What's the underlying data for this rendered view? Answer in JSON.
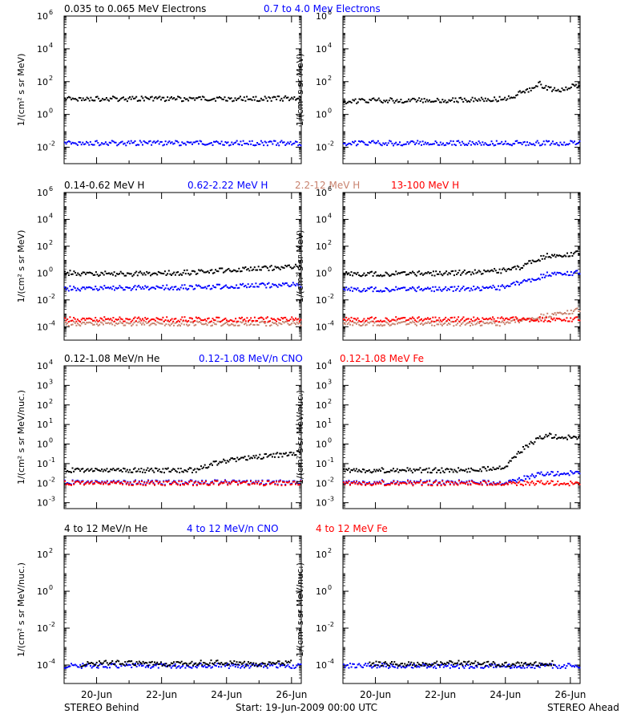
{
  "footer": {
    "left": "STEREO Behind",
    "center": "Start: 19-Jun-2009 00:00 UTC",
    "right": "STEREO Ahead"
  },
  "x_axis": {
    "ticks": [
      1,
      3,
      5,
      7
    ],
    "tick_labels": [
      "20-Jun",
      "22-Jun",
      "24-Jun",
      "26-Jun"
    ],
    "range_days": [
      0,
      7.3
    ]
  },
  "colors": {
    "black": "#000000",
    "blue": "#0000ff",
    "tan": "#c8826e",
    "red": "#ff0000"
  },
  "chart_data": [
    {
      "type": "scatter",
      "row": 0,
      "ylabel": "1/(cm² s sr MeV)",
      "log_y": true,
      "ylim": [
        0.001,
        1000000
      ],
      "y_ticks": [
        0.01,
        1,
        100,
        10000,
        1000000
      ],
      "y_tick_labels": [
        [
          "10",
          "-2"
        ],
        [
          "10",
          "0"
        ],
        [
          "10",
          "2"
        ],
        [
          "10",
          "4"
        ],
        [
          "10",
          "6"
        ]
      ],
      "legend": [
        {
          "text": "0.035 to 0.065 MeV Electrons",
          "color": "#000000"
        },
        {
          "text": "0.7 to 4.0 Mev Electrons",
          "color": "#0000ff"
        }
      ],
      "panels": [
        {
          "spacecraft": "STEREO Behind",
          "series": [
            {
              "color": "#000000",
              "points": [
                [
                  0,
                  10
                ],
                [
                  1,
                  10
                ],
                [
                  2,
                  10
                ],
                [
                  3,
                  10
                ],
                [
                  4,
                  10
                ],
                [
                  5,
                  10
                ],
                [
                  6,
                  10
                ],
                [
                  7.3,
                  11
                ]
              ]
            },
            {
              "color": "#0000ff",
              "points": [
                [
                  0,
                  0.02
                ],
                [
                  2,
                  0.02
                ],
                [
                  4,
                  0.02
                ],
                [
                  6,
                  0.02
                ],
                [
                  7.3,
                  0.02
                ]
              ]
            }
          ]
        },
        {
          "spacecraft": "STEREO Ahead",
          "series": [
            {
              "color": "#000000",
              "points": [
                [
                  0,
                  7
                ],
                [
                  1,
                  8
                ],
                [
                  2,
                  8
                ],
                [
                  3,
                  8
                ],
                [
                  4,
                  9
                ],
                [
                  5,
                  10
                ],
                [
                  5.5,
                  25
                ],
                [
                  5.8,
                  45
                ],
                [
                  6,
                  90
                ],
                [
                  6.3,
                  40
                ],
                [
                  6.6,
                  35
                ],
                [
                  7,
                  55
                ],
                [
                  7.3,
                  60
                ]
              ]
            },
            {
              "color": "#0000ff",
              "points": [
                [
                  0,
                  0.02
                ],
                [
                  2,
                  0.02
                ],
                [
                  4,
                  0.02
                ],
                [
                  6,
                  0.02
                ],
                [
                  7.3,
                  0.02
                ]
              ]
            }
          ]
        }
      ]
    },
    {
      "type": "scatter",
      "row": 1,
      "ylabel": "1/(cm² s sr MeV)",
      "log_y": true,
      "ylim": [
        1e-05,
        1000000
      ],
      "y_ticks": [
        0.0001,
        0.01,
        1,
        100,
        10000,
        1000000
      ],
      "y_tick_labels": [
        [
          "10",
          "-4"
        ],
        [
          "10",
          "-2"
        ],
        [
          "10",
          "0"
        ],
        [
          "10",
          "2"
        ],
        [
          "10",
          "4"
        ],
        [
          "10",
          "6"
        ]
      ],
      "legend": [
        {
          "text": "0.14-0.62 MeV H",
          "color": "#000000"
        },
        {
          "text": "0.62-2.22 MeV H",
          "color": "#0000ff"
        },
        {
          "text": "2.2-12 MeV H",
          "color": "#c8826e"
        },
        {
          "text": "13-100 MeV H",
          "color": "#ff0000"
        }
      ],
      "panels": [
        {
          "spacecraft": "STEREO Behind",
          "series": [
            {
              "color": "#000000",
              "points": [
                [
                  0,
                  1.2
                ],
                [
                  1,
                  1
                ],
                [
                  2,
                  1
                ],
                [
                  3,
                  1.1
                ],
                [
                  4,
                  1.3
                ],
                [
                  5,
                  2
                ],
                [
                  6,
                  2.5
                ],
                [
                  7.3,
                  3.5
                ]
              ]
            },
            {
              "color": "#0000ff",
              "points": [
                [
                  0,
                  0.08
                ],
                [
                  2,
                  0.09
                ],
                [
                  4,
                  0.1
                ],
                [
                  5,
                  0.12
                ],
                [
                  6,
                  0.14
                ],
                [
                  7.3,
                  0.15
                ]
              ]
            },
            {
              "color": "#c8826e",
              "points": [
                [
                  0,
                  0.0002
                ],
                [
                  3,
                  0.0002
                ],
                [
                  7.3,
                  0.0002
                ]
              ]
            },
            {
              "color": "#ff0000",
              "points": [
                [
                  0,
                  0.0004
                ],
                [
                  2,
                  0.0004
                ],
                [
                  4,
                  0.0004
                ],
                [
                  6,
                  0.0004
                ],
                [
                  7.3,
                  0.0004
                ]
              ]
            }
          ]
        },
        {
          "spacecraft": "STEREO Ahead",
          "series": [
            {
              "color": "#000000",
              "points": [
                [
                  0,
                  1
                ],
                [
                  2,
                  1
                ],
                [
                  3,
                  1.1
                ],
                [
                  4,
                  1.3
                ],
                [
                  5,
                  1.8
                ],
                [
                  5.5,
                  3
                ],
                [
                  5.7,
                  8
                ],
                [
                  6,
                  12
                ],
                [
                  6.3,
                  25
                ],
                [
                  6.6,
                  20
                ],
                [
                  7,
                  30
                ],
                [
                  7.3,
                  35
                ]
              ]
            },
            {
              "color": "#0000ff",
              "points": [
                [
                  0,
                  0.07
                ],
                [
                  2,
                  0.07
                ],
                [
                  4,
                  0.08
                ],
                [
                  5,
                  0.1
                ],
                [
                  5.6,
                  0.3
                ],
                [
                  6,
                  0.5
                ],
                [
                  6.3,
                  1
                ],
                [
                  7,
                  1.1
                ],
                [
                  7.3,
                  1.2
                ]
              ]
            },
            {
              "color": "#c8826e",
              "points": [
                [
                  0,
                  0.0002
                ],
                [
                  5,
                  0.0002
                ],
                [
                  6,
                  0.0006
                ],
                [
                  6.5,
                  0.001
                ],
                [
                  7,
                  0.0015
                ],
                [
                  7.3,
                  0.002
                ]
              ]
            },
            {
              "color": "#ff0000",
              "points": [
                [
                  0,
                  0.0004
                ],
                [
                  2,
                  0.0004
                ],
                [
                  4,
                  0.0004
                ],
                [
                  6,
                  0.0004
                ],
                [
                  7.3,
                  0.0004
                ]
              ]
            }
          ]
        }
      ]
    },
    {
      "type": "scatter",
      "row": 2,
      "ylabel": "1/(cm² s sr MeV/nuc.)",
      "log_y": true,
      "ylim": [
        0.0005,
        10000
      ],
      "y_ticks": [
        0.001,
        0.01,
        0.1,
        1,
        10,
        100,
        1000,
        10000
      ],
      "y_tick_labels": [
        [
          "10",
          "-3"
        ],
        [
          "10",
          "-2"
        ],
        [
          "10",
          "-1"
        ],
        [
          "10",
          "0"
        ],
        [
          "10",
          "1"
        ],
        [
          "10",
          "2"
        ],
        [
          "10",
          "3"
        ],
        [
          "10",
          "4"
        ]
      ],
      "legend": [
        {
          "text": "0.12-1.08 MeV/n He",
          "color": "#000000"
        },
        {
          "text": "0.12-1.08 MeV/n CNO",
          "color": "#0000ff"
        },
        {
          "text": "0.12-1.08 MeV Fe",
          "color": "#ff0000"
        }
      ],
      "panels": [
        {
          "spacecraft": "STEREO Behind",
          "series": [
            {
              "color": "#000000",
              "points": [
                [
                  0,
                  0.05
                ],
                [
                  2,
                  0.05
                ],
                [
                  4,
                  0.05
                ],
                [
                  4.5,
                  0.1
                ],
                [
                  5,
                  0.15
                ],
                [
                  5.5,
                  0.2
                ],
                [
                  6,
                  0.25
                ],
                [
                  6.5,
                  0.3
                ],
                [
                  7,
                  0.35
                ],
                [
                  7.3,
                  0.4
                ]
              ]
            },
            {
              "color": "#0000ff",
              "points": [
                [
                  0,
                  0.012
                ],
                [
                  3,
                  0.012
                ],
                [
                  7.3,
                  0.012
                ]
              ]
            },
            {
              "color": "#ff0000",
              "points": [
                [
                  0,
                  0.011
                ],
                [
                  3,
                  0.011
                ],
                [
                  7.3,
                  0.011
                ]
              ]
            }
          ]
        },
        {
          "spacecraft": "STEREO Ahead",
          "series": [
            {
              "color": "#000000",
              "points": [
                [
                  0,
                  0.05
                ],
                [
                  2,
                  0.05
                ],
                [
                  4,
                  0.05
                ],
                [
                  5,
                  0.08
                ],
                [
                  5.3,
                  0.3
                ],
                [
                  5.6,
                  0.8
                ],
                [
                  6,
                  2
                ],
                [
                  6.3,
                  3
                ],
                [
                  6.6,
                  2.5
                ],
                [
                  7,
                  2.5
                ],
                [
                  7.3,
                  2.2
                ]
              ]
            },
            {
              "color": "#0000ff",
              "points": [
                [
                  0,
                  0.012
                ],
                [
                  3,
                  0.012
                ],
                [
                  5,
                  0.012
                ],
                [
                  6,
                  0.03
                ],
                [
                  7.3,
                  0.04
                ]
              ]
            },
            {
              "color": "#ff0000",
              "points": [
                [
                  0,
                  0.011
                ],
                [
                  3,
                  0.011
                ],
                [
                  7.3,
                  0.011
                ]
              ]
            }
          ]
        }
      ]
    },
    {
      "type": "scatter",
      "row": 3,
      "ylabel": "1/(cm² s sr MeV/nuc.)",
      "log_y": true,
      "ylim": [
        1e-05,
        1000
      ],
      "y_ticks": [
        0.0001,
        0.01,
        1,
        100
      ],
      "y_tick_labels": [
        [
          "10",
          "-4"
        ],
        [
          "10",
          "-2"
        ],
        [
          "10",
          "0"
        ],
        [
          "10",
          "2"
        ]
      ],
      "legend": [
        {
          "text": "4 to 12 MeV/n He",
          "color": "#000000"
        },
        {
          "text": "4 to 12 MeV/n CNO",
          "color": "#0000ff"
        },
        {
          "text": "4 to 12 MeV Fe",
          "color": "#ff0000"
        }
      ],
      "panels": [
        {
          "spacecraft": "STEREO Behind",
          "series": [
            {
              "color": "#0000ff",
              "points": [
                [
                  0,
                  0.0001
                ],
                [
                  7.3,
                  0.0001
                ]
              ]
            },
            {
              "color": "#000000",
              "points": [
                [
                  0.5,
                  0.00012
                ],
                [
                  1.5,
                  0.00015
                ],
                [
                  3,
                  0.00012
                ],
                [
                  4.5,
                  0.00015
                ],
                [
                  6,
                  0.00012
                ],
                [
                  7,
                  0.00015
                ]
              ]
            }
          ]
        },
        {
          "spacecraft": "STEREO Ahead",
          "series": [
            {
              "color": "#0000ff",
              "points": [
                [
                  0,
                  0.0001
                ],
                [
                  7.3,
                  0.0001
                ]
              ]
            },
            {
              "color": "#000000",
              "points": [
                [
                  0.8,
                  0.00013
                ],
                [
                  2,
                  0.00012
                ],
                [
                  3.5,
                  0.00015
                ],
                [
                  5,
                  0.00012
                ],
                [
                  6.5,
                  0.00014
                ]
              ]
            }
          ]
        }
      ]
    }
  ]
}
